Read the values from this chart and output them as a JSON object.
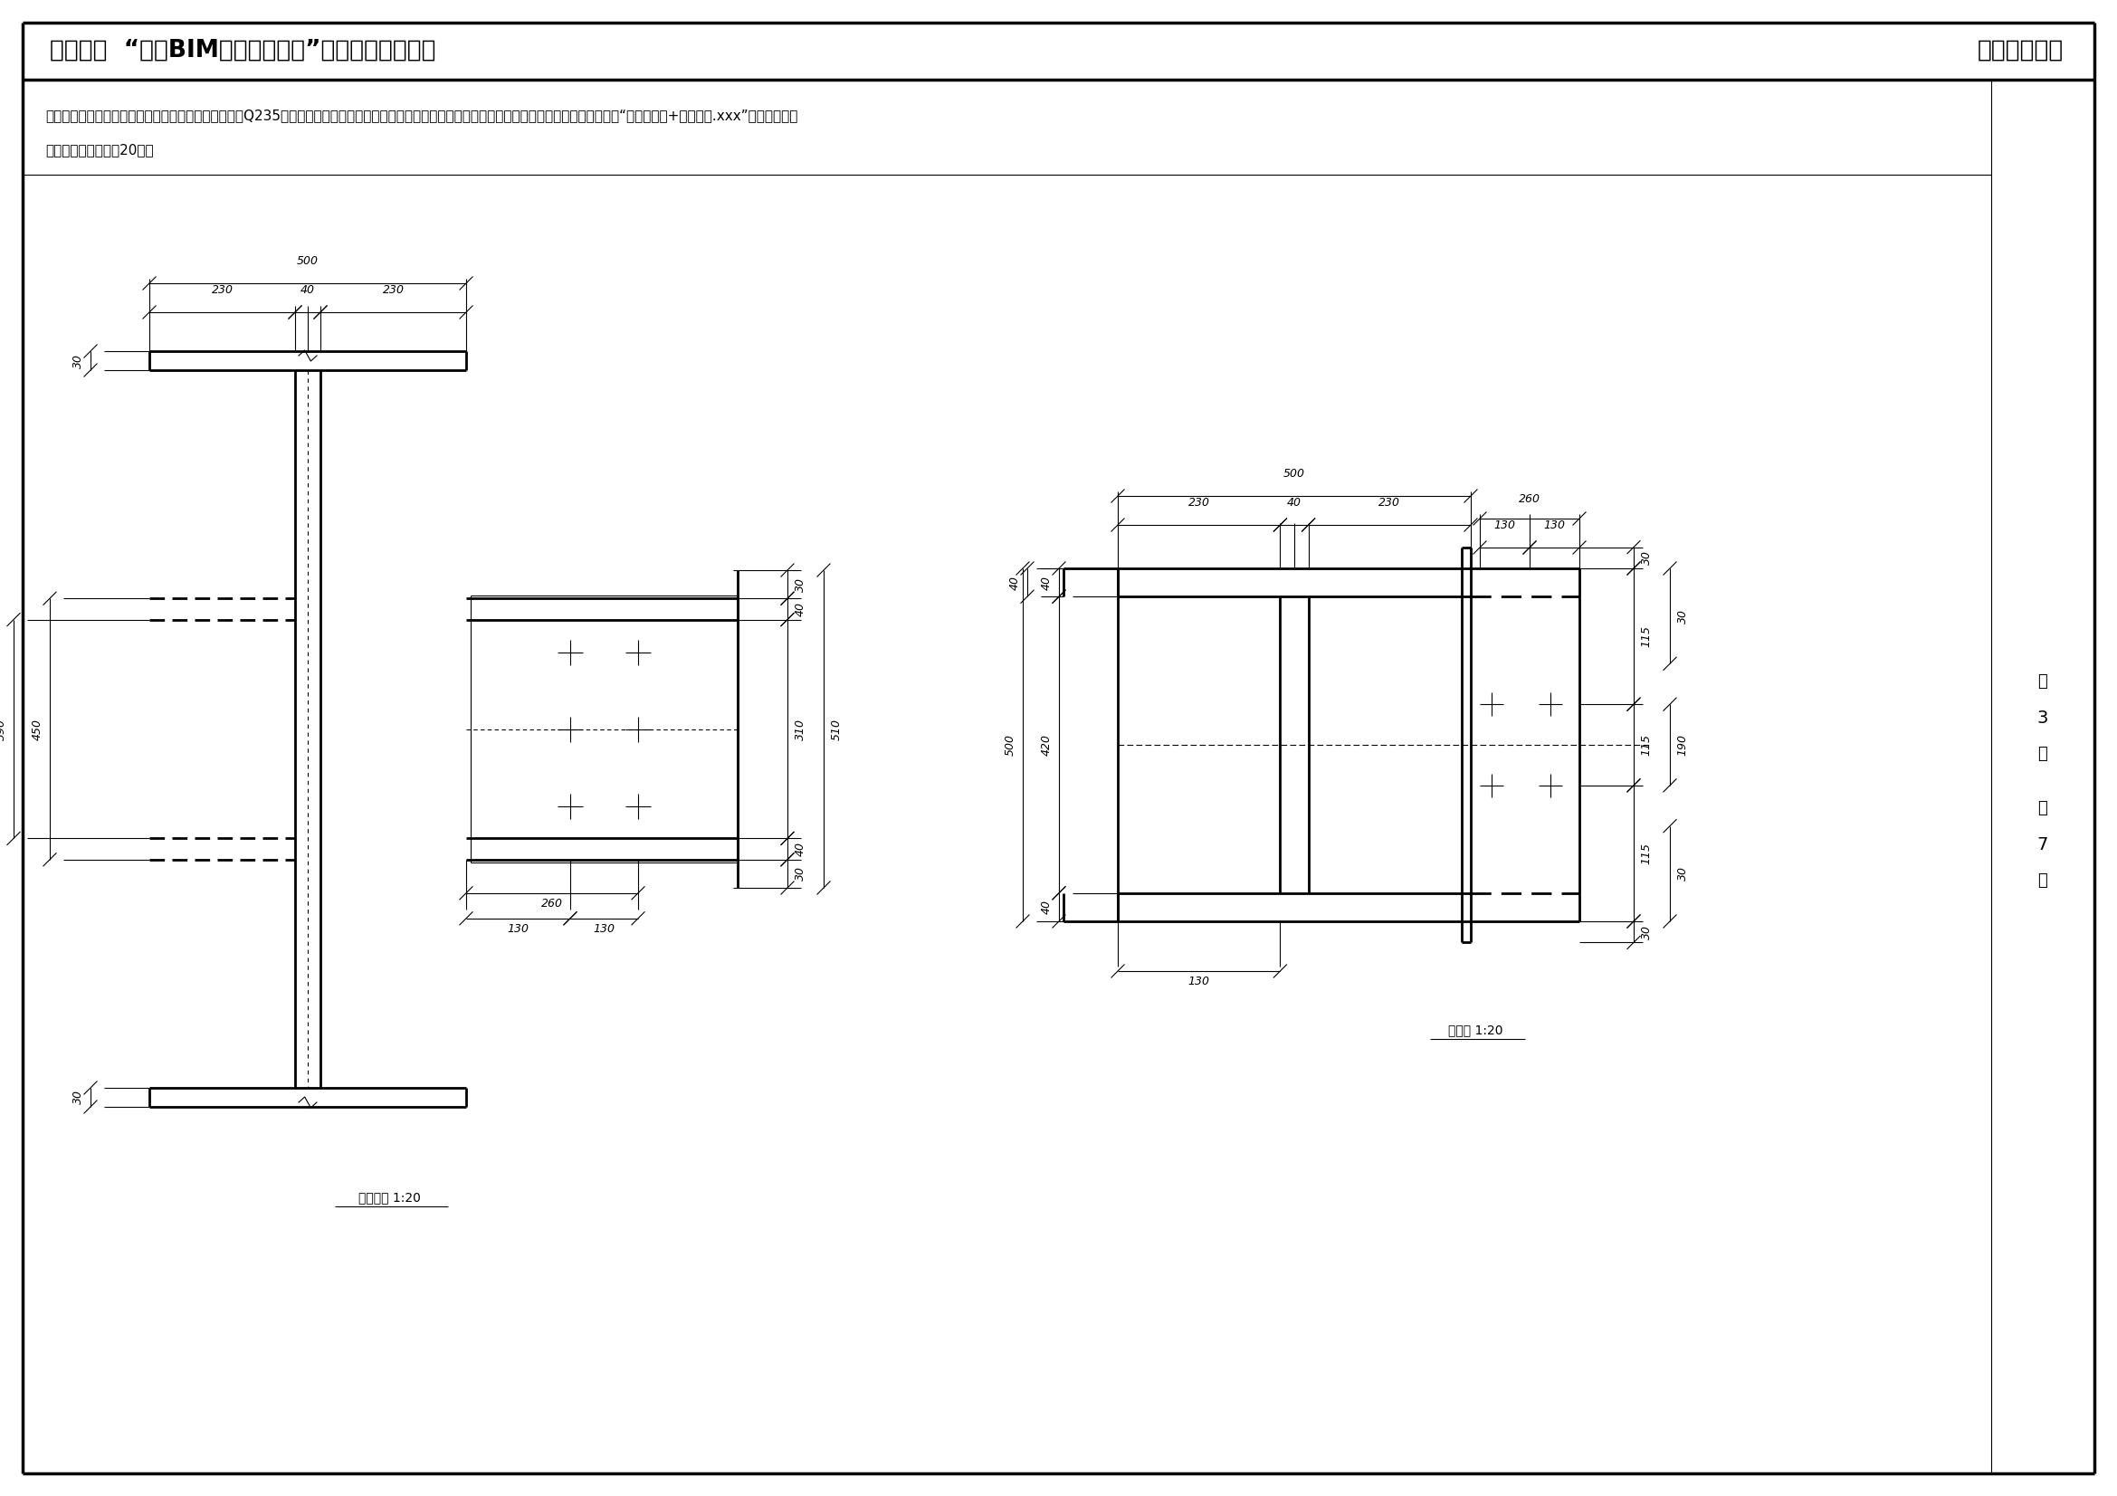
{
  "title_left": "第十五期  “全国BIM技能等级考试”二级（结构）试题",
  "title_right": "中国图学学会",
  "question_text_line1": "三、请根据下图创建工字钢及其节点模型，钢材强度取Q235，螺栓尺寸及造型、锚固深度和钢柱高度自行选择合理值，未标明尺寸不作要求，请将模型以“工字钢节点+考生姓名.xxx”为文件名保存",
  "question_text_line2": "到考生文件夹中。（20分）",
  "page_num": "3",
  "total_pages": "7",
  "label_front": "正立面图 1:20",
  "label_side": "侧视图 1:20",
  "bg_color": "#ffffff"
}
